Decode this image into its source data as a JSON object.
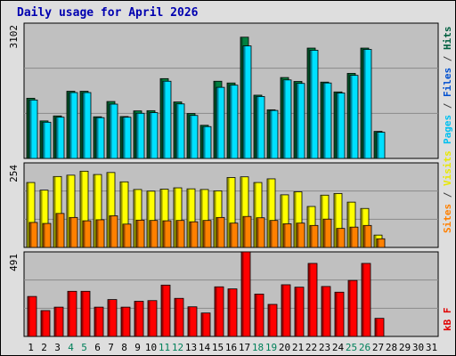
{
  "title": "Daily usage for April 2026",
  "panels": {
    "hits": {
      "max_label": "3102",
      "side_label": [
        {
          "text": "Pages",
          "color": "#00c0f0"
        },
        {
          "text": " / ",
          "color": "#404040"
        },
        {
          "text": "Files",
          "color": "#0050d0"
        },
        {
          "text": " / ",
          "color": "#404040"
        },
        {
          "text": "Hits",
          "color": "#006040"
        }
      ]
    },
    "visits": {
      "max_label": "254",
      "side_label": [
        {
          "text": "Sites",
          "color": "#ff8000"
        },
        {
          "text": " / ",
          "color": "#404040"
        },
        {
          "text": "Visits",
          "color": "#e8e800"
        }
      ]
    },
    "kbytes": {
      "max_label": "491",
      "side_label": [
        {
          "text": "kB F",
          "color": "#e00000"
        }
      ]
    }
  },
  "colors": {
    "hits": "#008040",
    "files": "#00e0ff",
    "visits": "#ffff00",
    "sites": "#ff8000",
    "kbytes": "#ff0000",
    "weekday_label": "#000000",
    "weekend_label": "#00805a"
  },
  "chart_data": {
    "type": "bar",
    "title": "Daily usage for April 2026",
    "x": [
      "1",
      "2",
      "3",
      "4",
      "5",
      "6",
      "7",
      "8",
      "9",
      "10",
      "11",
      "12",
      "13",
      "14",
      "15",
      "16",
      "17",
      "18",
      "19",
      "20",
      "21",
      "22",
      "23",
      "24",
      "25",
      "26",
      "27",
      "28",
      "29",
      "30",
      "31"
    ],
    "weekend_days": [
      "4",
      "5",
      "11",
      "12",
      "18",
      "19",
      "25",
      "26"
    ],
    "series": [
      {
        "name": "Hits",
        "panel": "hits",
        "values": [
          1380,
          860,
          975,
          1540,
          1540,
          955,
          1305,
          960,
          1090,
          1095,
          1830,
          1295,
          1030,
          760,
          1770,
          1730,
          2780,
          1450,
          1115,
          1855,
          1765,
          2530,
          1750,
          1525,
          1950,
          2530,
          620,
          0,
          0,
          0,
          0
        ]
      },
      {
        "name": "Files",
        "panel": "hits",
        "values": [
          1340,
          830,
          945,
          1510,
          1510,
          935,
          1245,
          945,
          1035,
          1050,
          1770,
          1250,
          985,
          730,
          1630,
          1680,
          2580,
          1420,
          1100,
          1800,
          1720,
          2480,
          1730,
          1500,
          1905,
          2500,
          600,
          0,
          0,
          0,
          0
        ]
      },
      {
        "name": "Pages",
        "panel": "hits",
        "values": [
          1340,
          830,
          945,
          1510,
          1510,
          935,
          1245,
          945,
          1035,
          1050,
          1770,
          1250,
          985,
          730,
          1630,
          1680,
          2580,
          1420,
          1100,
          1800,
          1720,
          2480,
          1730,
          1500,
          1905,
          2500,
          600,
          0,
          0,
          0,
          0
        ]
      },
      {
        "name": "Visits",
        "panel": "visits",
        "values": [
          195,
          172,
          213,
          217,
          229,
          219,
          225,
          197,
          174,
          169,
          175,
          179,
          176,
          174,
          170,
          210,
          212,
          195,
          206,
          158,
          167,
          123,
          157,
          162,
          136,
          117,
          37,
          0,
          0,
          0,
          0
        ]
      },
      {
        "name": "Sites",
        "panel": "visits",
        "values": [
          75,
          72,
          102,
          90,
          80,
          83,
          95,
          70,
          82,
          81,
          80,
          81,
          77,
          81,
          90,
          73,
          93,
          89,
          81,
          71,
          73,
          66,
          85,
          57,
          61,
          66,
          26,
          0,
          0,
          0,
          0
        ]
      },
      {
        "name": "KBytes",
        "panel": "kbytes",
        "values": [
          232,
          150,
          170,
          262,
          262,
          170,
          214,
          170,
          204,
          208,
          298,
          221,
          172,
          136,
          288,
          276,
          491,
          246,
          186,
          300,
          286,
          424,
          290,
          257,
          325,
          424,
          105,
          0,
          0,
          0,
          0
        ]
      }
    ],
    "ylim": {
      "hits": [
        0,
        3102
      ],
      "visits": [
        0,
        254
      ],
      "kbytes": [
        0,
        491
      ]
    },
    "grid": true
  }
}
